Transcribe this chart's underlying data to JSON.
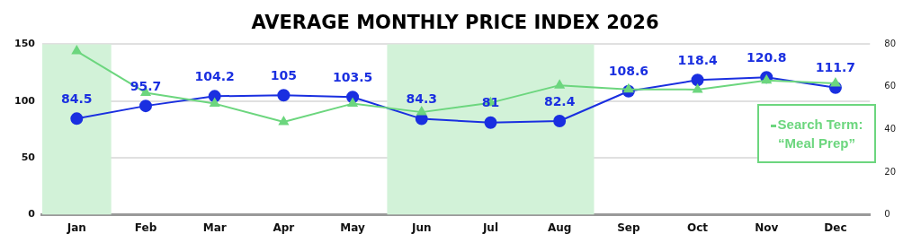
{
  "chart_data": {
    "type": "line",
    "title": "AVERAGE MONTHLY PRICE INDEX 2026",
    "categories": [
      "Jan",
      "Feb",
      "Mar",
      "Apr",
      "May",
      "Jun",
      "Jul",
      "Aug",
      "Sep",
      "Oct",
      "Nov",
      "Dec"
    ],
    "series": [
      {
        "color": "#1a2fe0",
        "marker": "circle",
        "values": [
          84.5,
          95.7,
          104.2,
          105,
          103.5,
          84.3,
          81,
          82.4,
          108.6,
          118.4,
          120.8,
          111.7
        ],
        "value_labels": [
          "84.5",
          "95.7",
          "104.2",
          "105",
          "103.5",
          "84.3",
          "81",
          "82.4",
          "108.6",
          "118.4",
          "120.8",
          "111.7"
        ]
      },
      {
        "name": "Search Term: “Meal Prep”",
        "color": "#6cd67e",
        "marker": "triangle",
        "axis": "y2",
        "values": [
          76.7,
          57.2,
          52.1,
          43.5,
          52.1,
          48.1,
          52.5,
          60.7,
          58.8,
          58.7,
          63,
          61.6
        ]
      }
    ],
    "ylim": [
      0,
      150
    ],
    "yticks": [
      0,
      50,
      100,
      150
    ],
    "y2lim": [
      0,
      80
    ],
    "y2ticks": [
      0,
      20,
      40,
      60,
      80
    ],
    "bands": [
      {
        "axis": "x",
        "from": "Jan",
        "to": "Jan",
        "color": "#d2f2d8"
      },
      {
        "axis": "x",
        "from": "Jun",
        "to": "Aug",
        "color": "#d2f2d8"
      }
    ],
    "grid": "y",
    "legend": "right"
  }
}
